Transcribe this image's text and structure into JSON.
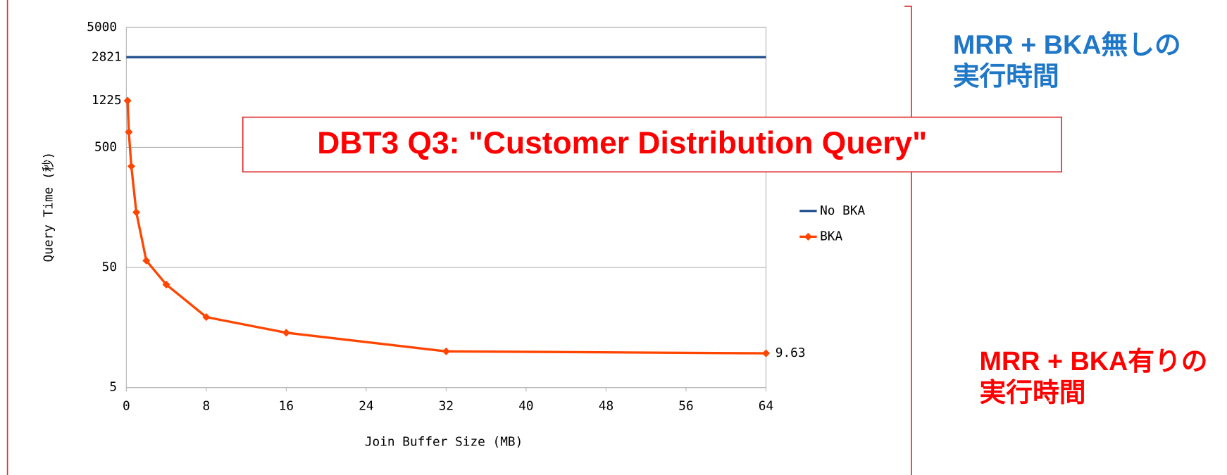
{
  "chart_data": {
    "type": "line",
    "title": "DBT3 Q3: \"Customer Distribution Query\"",
    "xlabel": "Join Buffer Size (MB)",
    "ylabel": "Query Time (秒)",
    "xlim": [
      0,
      64
    ],
    "xticks": [
      0,
      8,
      16,
      24,
      32,
      40,
      48,
      56,
      64
    ],
    "ylim": [
      5,
      5000
    ],
    "yticks": [
      5,
      50,
      500,
      5000
    ],
    "log_y": true,
    "grid": true,
    "legend": "right",
    "series": [
      {
        "name": "No BKA",
        "color": "#1f4e8c",
        "marker": "none",
        "x": [
          0,
          64
        ],
        "values": [
          2821,
          2821
        ],
        "label_points": [
          0
        ]
      },
      {
        "name": "BKA",
        "color": "#ff4500",
        "marker": "diamond",
        "x": [
          0.125,
          0.25,
          0.5,
          1,
          2,
          4,
          8,
          16,
          32,
          64
        ],
        "values": [
          1225,
          671,
          348,
          144,
          57,
          36,
          19.3,
          14.3,
          10.0,
          9.63
        ],
        "label_points": [
          0,
          9
        ]
      }
    ],
    "annotations": [
      {
        "lines": [
          "MRR + BKA無しの",
          "実行時間"
        ],
        "color": "#1f77c8"
      },
      {
        "lines": [
          "MRR + BKA有りの",
          "実行時間"
        ],
        "color": "#ff0000"
      }
    ]
  }
}
